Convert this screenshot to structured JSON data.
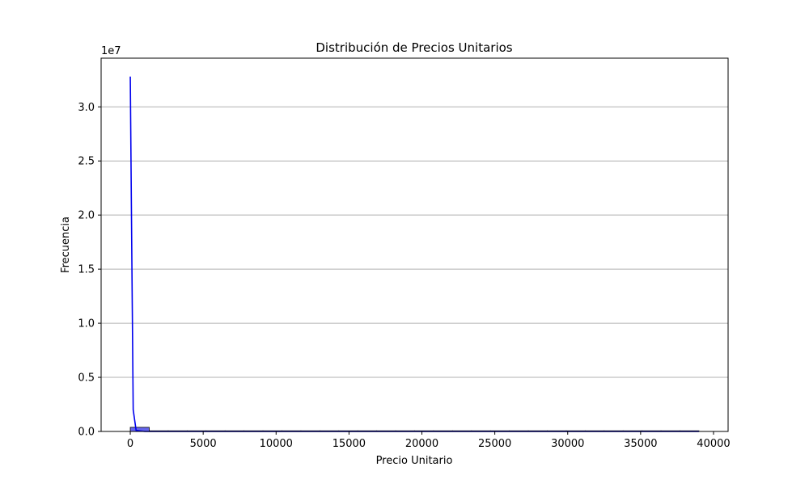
{
  "chart_data": {
    "type": "bar",
    "title": "Distribución de Precios Unitarios",
    "xlabel": "Precio Unitario",
    "ylabel": "Frecuencia",
    "y_offset_label": "1e7",
    "xlim": [
      -2000,
      41000
    ],
    "ylim": [
      0,
      34500000
    ],
    "x_ticks": [
      0,
      5000,
      10000,
      15000,
      20000,
      25000,
      30000,
      35000,
      40000
    ],
    "x_tick_labels": [
      "0",
      "5000",
      "10000",
      "15000",
      "20000",
      "25000",
      "30000",
      "35000",
      "40000"
    ],
    "y_ticks": [
      0,
      5000000,
      10000000,
      15000000,
      20000000,
      25000000,
      30000000
    ],
    "y_tick_labels": [
      "0.0",
      "0.5",
      "1.0",
      "1.5",
      "2.0",
      "2.5",
      "3.0"
    ],
    "grid": "y",
    "histogram": {
      "bin_edges": [
        0,
        1300,
        2600,
        3900,
        5200,
        6500,
        7800,
        9100,
        10400,
        11700,
        13000,
        14300,
        15600,
        16900,
        18200,
        19500,
        20800,
        22100,
        23400,
        24700,
        26000,
        27300,
        28600,
        29900,
        31200,
        32500,
        33800,
        35100,
        36400,
        37700,
        39000
      ],
      "counts": [
        380000,
        0,
        0,
        0,
        0,
        0,
        0,
        0,
        0,
        0,
        0,
        0,
        0,
        0,
        0,
        0,
        0,
        0,
        0,
        0,
        0,
        0,
        0,
        0,
        0,
        0,
        0,
        0,
        0,
        0
      ]
    },
    "kde_line": {
      "x": [
        0,
        100,
        200,
        400,
        1000,
        5000,
        10000,
        20000,
        30000,
        39000
      ],
      "y": [
        32800000,
        17000000,
        2000000,
        100000,
        0,
        0,
        0,
        0,
        0,
        0
      ]
    },
    "colors": {
      "bar_fill": "#6666ee",
      "bar_edge": "#000000",
      "kde_line": "#0000ee",
      "grid": "#b0b0b0"
    }
  }
}
